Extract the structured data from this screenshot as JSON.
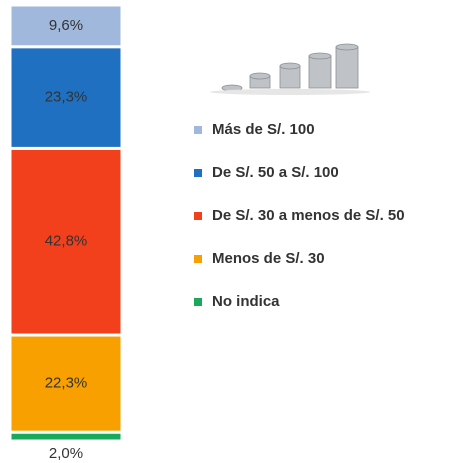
{
  "chart_data": {
    "type": "bar",
    "stacked": true,
    "categories": [
      null
    ],
    "series": [
      {
        "name": "Más de S/. 100",
        "color": "#9fb8dc",
        "values": [
          9.6
        ],
        "value_labels": [
          "9,6%"
        ]
      },
      {
        "name": "De S/. 50 a S/. 100",
        "color": "#1f70c1",
        "values": [
          23.3
        ],
        "value_labels": [
          "23,3%"
        ]
      },
      {
        "name": "De S/. 30 a menos de S/. 50",
        "color": "#f2401c",
        "values": [
          42.8
        ],
        "value_labels": [
          "42,8%"
        ]
      },
      {
        "name": "Menos de S/. 30",
        "color": "#f8a000",
        "values": [
          22.3
        ],
        "value_labels": [
          "22,3%"
        ]
      },
      {
        "name": "No indica",
        "color": "#1aa85a",
        "values": [
          2.0
        ],
        "value_labels": [
          "2,0%"
        ]
      }
    ]
  }
}
